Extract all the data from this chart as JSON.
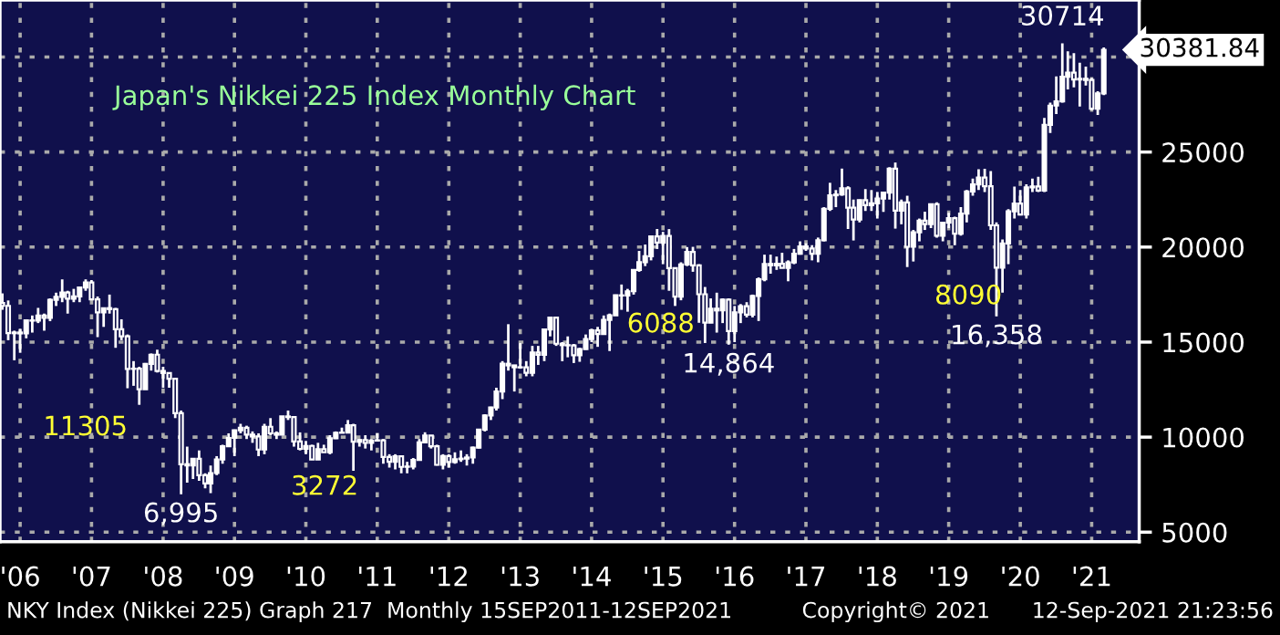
{
  "chart_data": {
    "type": "candlestick",
    "title": "Japan's Nikkei 225 Index Monthly Chart",
    "x": [
      "2006-04",
      "2006-05",
      "2006-06",
      "2006-07",
      "2006-08",
      "2006-09",
      "2006-10",
      "2006-11",
      "2006-12",
      "2007-01",
      "2007-02",
      "2007-03",
      "2007-04",
      "2007-05",
      "2007-06",
      "2007-07",
      "2007-08",
      "2007-09",
      "2007-10",
      "2007-11",
      "2007-12",
      "2008-01",
      "2008-02",
      "2008-03",
      "2008-04",
      "2008-05",
      "2008-06",
      "2008-07",
      "2008-08",
      "2008-09",
      "2008-10",
      "2008-11",
      "2008-12",
      "2009-01",
      "2009-02",
      "2009-03",
      "2009-04",
      "2009-05",
      "2009-06",
      "2009-07",
      "2009-08",
      "2009-09",
      "2009-10",
      "2009-11",
      "2009-12",
      "2010-01",
      "2010-02",
      "2010-03",
      "2010-04",
      "2010-05",
      "2010-06",
      "2010-07",
      "2010-08",
      "2010-09",
      "2010-10",
      "2010-11",
      "2010-12",
      "2011-01",
      "2011-02",
      "2011-03",
      "2011-04",
      "2011-05",
      "2011-06",
      "2011-07",
      "2011-08",
      "2011-09",
      "2011-10",
      "2011-11",
      "2011-12",
      "2012-01",
      "2012-02",
      "2012-03",
      "2012-04",
      "2012-05",
      "2012-06",
      "2012-07",
      "2012-08",
      "2012-09",
      "2012-10",
      "2012-11",
      "2012-12",
      "2013-01",
      "2013-02",
      "2013-03",
      "2013-04",
      "2013-05",
      "2013-06",
      "2013-07",
      "2013-08",
      "2013-09",
      "2013-10",
      "2013-11",
      "2013-12",
      "2014-01",
      "2014-02",
      "2014-03",
      "2014-04",
      "2014-05",
      "2014-06",
      "2014-07",
      "2014-08",
      "2014-09",
      "2014-10",
      "2014-11",
      "2014-12",
      "2015-01",
      "2015-02",
      "2015-03",
      "2015-04",
      "2015-05",
      "2015-06",
      "2015-07",
      "2015-08",
      "2015-09",
      "2015-10",
      "2015-11",
      "2015-12",
      "2016-01",
      "2016-02",
      "2016-03",
      "2016-04",
      "2016-05",
      "2016-06",
      "2016-07",
      "2016-08",
      "2016-09",
      "2016-10",
      "2016-11",
      "2016-12",
      "2017-01",
      "2017-02",
      "2017-03",
      "2017-04",
      "2017-05",
      "2017-06",
      "2017-07",
      "2017-08",
      "2017-09",
      "2017-10",
      "2017-11",
      "2017-12",
      "2018-01",
      "2018-02",
      "2018-03",
      "2018-04",
      "2018-05",
      "2018-06",
      "2018-07",
      "2018-08",
      "2018-09",
      "2018-10",
      "2018-11",
      "2018-12",
      "2019-01",
      "2019-02",
      "2019-03",
      "2019-04",
      "2019-05",
      "2019-06",
      "2019-07",
      "2019-08",
      "2019-09",
      "2019-10",
      "2019-11",
      "2019-12",
      "2020-01",
      "2020-02",
      "2020-03",
      "2020-04",
      "2020-05",
      "2020-06",
      "2020-07",
      "2020-08",
      "2020-09",
      "2020-10",
      "2020-11",
      "2020-12",
      "2021-01",
      "2021-02",
      "2021-03",
      "2021-04",
      "2021-05",
      "2021-06",
      "2021-07",
      "2021-08",
      "2021-09"
    ],
    "ohlc": [
      [
        17059,
        17563,
        16700,
        16906
      ],
      [
        16906,
        17190,
        15100,
        15467
      ],
      [
        15467,
        15600,
        14045,
        15505
      ],
      [
        15505,
        15700,
        14437,
        15457
      ],
      [
        15457,
        16200,
        15200,
        16140
      ],
      [
        16140,
        16400,
        15500,
        16128
      ],
      [
        16128,
        16800,
        16000,
        16399
      ],
      [
        16399,
        16500,
        15600,
        16274
      ],
      [
        16274,
        17300,
        16100,
        17226
      ],
      [
        17226,
        17600,
        16900,
        17383
      ],
      [
        17383,
        18300,
        17100,
        17604
      ],
      [
        17604,
        17700,
        16500,
        17288
      ],
      [
        17288,
        17800,
        17100,
        17400
      ],
      [
        17400,
        17900,
        17100,
        17875
      ],
      [
        17875,
        18300,
        17700,
        18138
      ],
      [
        18138,
        18262,
        17200,
        17248
      ],
      [
        17248,
        17400,
        15262,
        16569
      ],
      [
        16569,
        16800,
        15800,
        16786
      ],
      [
        16786,
        17500,
        16500,
        16737
      ],
      [
        16737,
        16800,
        14700,
        15680
      ],
      [
        15680,
        16200,
        15100,
        15308
      ],
      [
        15308,
        15400,
        12572,
        13592
      ],
      [
        13592,
        14000,
        12700,
        13603
      ],
      [
        13603,
        13700,
        11700,
        12525
      ],
      [
        12525,
        13900,
        12500,
        13849
      ],
      [
        13849,
        14400,
        13500,
        14338
      ],
      [
        14338,
        14600,
        13400,
        13481
      ],
      [
        13481,
        13700,
        12600,
        13376
      ],
      [
        13376,
        13400,
        12600,
        13072
      ],
      [
        13072,
        13100,
        11000,
        11259
      ],
      [
        11259,
        11400,
        6995,
        8576
      ],
      [
        8576,
        9500,
        7600,
        8512
      ],
      [
        8512,
        8900,
        7800,
        8859
      ],
      [
        8859,
        9300,
        7700,
        7994
      ],
      [
        7994,
        8100,
        7300,
        7568
      ],
      [
        7568,
        8500,
        7055,
        8109
      ],
      [
        8109,
        9000,
        8000,
        8828
      ],
      [
        8828,
        9600,
        8600,
        9522
      ],
      [
        9522,
        10200,
        9500,
        9958
      ],
      [
        9958,
        10400,
        9000,
        10356
      ],
      [
        10356,
        10700,
        10200,
        10492
      ],
      [
        10492,
        10600,
        9900,
        10133
      ],
      [
        10133,
        10300,
        9700,
        10034
      ],
      [
        10034,
        10200,
        9000,
        9345
      ],
      [
        9345,
        10700,
        9100,
        10546
      ],
      [
        10546,
        11000,
        10100,
        10198
      ],
      [
        10198,
        10300,
        9900,
        10126
      ],
      [
        10126,
        11100,
        10100,
        11089
      ],
      [
        11089,
        11400,
        10900,
        11057
      ],
      [
        11057,
        11100,
        9500,
        9768
      ],
      [
        9768,
        10250,
        9300,
        9382
      ],
      [
        9382,
        9800,
        9100,
        9537
      ],
      [
        9537,
        9600,
        8800,
        8824
      ],
      [
        8824,
        9700,
        8800,
        9369
      ],
      [
        9369,
        9600,
        9200,
        9202
      ],
      [
        9202,
        10100,
        9100,
        9937
      ],
      [
        9937,
        10300,
        9900,
        10228
      ],
      [
        10228,
        10500,
        10200,
        10237
      ],
      [
        10237,
        10900,
        10200,
        10624
      ],
      [
        10624,
        10700,
        8227,
        9755
      ],
      [
        9755,
        9900,
        9500,
        9849
      ],
      [
        9849,
        10100,
        9400,
        9693
      ],
      [
        9693,
        9900,
        9300,
        9816
      ],
      [
        9816,
        10200,
        9800,
        9833
      ],
      [
        9833,
        9900,
        8600,
        8955
      ],
      [
        8955,
        9100,
        8400,
        8700
      ],
      [
        8700,
        9100,
        8300,
        8988
      ],
      [
        8988,
        9000,
        8100,
        8434
      ],
      [
        8434,
        8700,
        8100,
        8455
      ],
      [
        8455,
        8900,
        8300,
        8802
      ],
      [
        8802,
        9900,
        8800,
        9723
      ],
      [
        9723,
        10255,
        9700,
        10083
      ],
      [
        10083,
        10100,
        9400,
        9520
      ],
      [
        9520,
        9600,
        8500,
        8542
      ],
      [
        8542,
        9100,
        8300,
        9006
      ],
      [
        9006,
        9100,
        8400,
        8695
      ],
      [
        8695,
        9200,
        8600,
        8839
      ],
      [
        8839,
        9300,
        8700,
        8870
      ],
      [
        8870,
        9100,
        8500,
        8928
      ],
      [
        8928,
        9500,
        8600,
        9446
      ],
      [
        9446,
        10400,
        9400,
        10395
      ],
      [
        10395,
        11200,
        10300,
        11138
      ],
      [
        11138,
        11600,
        10900,
        11559
      ],
      [
        11559,
        12600,
        11400,
        12397
      ],
      [
        12397,
        14000,
        12000,
        13860
      ],
      [
        13860,
        15942,
        13500,
        13774
      ],
      [
        13774,
        13800,
        12400,
        13677
      ],
      [
        13677,
        14950,
        13600,
        13668
      ],
      [
        13668,
        14000,
        13200,
        13388
      ],
      [
        13388,
        14800,
        13200,
        14455
      ],
      [
        14455,
        14800,
        13800,
        14327
      ],
      [
        14327,
        15700,
        14000,
        15661
      ],
      [
        15661,
        16320,
        15300,
        16291
      ],
      [
        16291,
        16300,
        14800,
        14914
      ],
      [
        14914,
        15000,
        13995,
        14841
      ],
      [
        14841,
        15300,
        14200,
        14828
      ],
      [
        14828,
        14900,
        13900,
        14304
      ],
      [
        14304,
        14700,
        13964,
        14632
      ],
      [
        14632,
        15400,
        14600,
        15162
      ],
      [
        15162,
        15700,
        15000,
        15620
      ],
      [
        15620,
        15800,
        14750,
        15425
      ],
      [
        15425,
        16400,
        15400,
        16173
      ],
      [
        16173,
        16500,
        14529,
        16413
      ],
      [
        16413,
        17500,
        16400,
        17460
      ],
      [
        17460,
        18030,
        16700,
        17450
      ],
      [
        17450,
        17800,
        16600,
        17674
      ],
      [
        17674,
        18800,
        17500,
        18798
      ],
      [
        18798,
        19800,
        18700,
        19206
      ],
      [
        19206,
        20133,
        19000,
        19520
      ],
      [
        19520,
        20600,
        19300,
        20563
      ],
      [
        20563,
        20952,
        19900,
        20235
      ],
      [
        20235,
        20800,
        19100,
        20585
      ],
      [
        20585,
        20946,
        17700,
        18890
      ],
      [
        18890,
        18900,
        16901,
        17388
      ],
      [
        17388,
        19200,
        17200,
        19083
      ],
      [
        19083,
        20000,
        19000,
        19747
      ],
      [
        19747,
        20012,
        18700,
        19033
      ],
      [
        19033,
        19100,
        16017,
        17518
      ],
      [
        17518,
        17900,
        14952,
        16026
      ],
      [
        16026,
        17300,
        16000,
        16758
      ],
      [
        16758,
        17600,
        15500,
        16666
      ],
      [
        16666,
        17300,
        16000,
        17235
      ],
      [
        17235,
        17300,
        14864,
        15575
      ],
      [
        15575,
        16900,
        15000,
        16569
      ],
      [
        16569,
        17000,
        16000,
        16887
      ],
      [
        16887,
        17100,
        16300,
        16449
      ],
      [
        16449,
        17500,
        16300,
        17425
      ],
      [
        17425,
        18400,
        16111,
        18308
      ],
      [
        18308,
        19600,
        18200,
        19114
      ],
      [
        19114,
        19600,
        18600,
        19041
      ],
      [
        19041,
        19500,
        18800,
        19119
      ],
      [
        19119,
        19700,
        18900,
        18909
      ],
      [
        18909,
        19300,
        18200,
        19197
      ],
      [
        19197,
        19900,
        19100,
        19650
      ],
      [
        19650,
        20300,
        19600,
        20033
      ],
      [
        20033,
        20200,
        19800,
        19925
      ],
      [
        19925,
        20100,
        19300,
        19646
      ],
      [
        19646,
        20500,
        19200,
        20356
      ],
      [
        20356,
        22100,
        20300,
        22011
      ],
      [
        22011,
        23382,
        21900,
        22724
      ],
      [
        22724,
        23000,
        22100,
        22764
      ],
      [
        22764,
        24129,
        22700,
        23098
      ],
      [
        23098,
        23200,
        20950,
        22068
      ],
      [
        22068,
        22500,
        20347,
        21454
      ],
      [
        21454,
        22500,
        21300,
        22467
      ],
      [
        22467,
        23050,
        21900,
        22202
      ],
      [
        22202,
        23000,
        21900,
        22304
      ],
      [
        22304,
        22900,
        21500,
        22553
      ],
      [
        22553,
        22900,
        21850,
        22865
      ],
      [
        22865,
        24200,
        22500,
        24120
      ],
      [
        24120,
        24448,
        20971,
        21920
      ],
      [
        21920,
        22500,
        21200,
        22351
      ],
      [
        22351,
        22700,
        18949,
        20015
      ],
      [
        20015,
        20900,
        19241,
        20773
      ],
      [
        20773,
        21500,
        20300,
        21385
      ],
      [
        21385,
        21860,
        20900,
        21206
      ],
      [
        21206,
        22300,
        21000,
        22258
      ],
      [
        22258,
        22350,
        20500,
        20601
      ],
      [
        20601,
        21300,
        20300,
        21276
      ],
      [
        21276,
        21800,
        21000,
        21521
      ],
      [
        21521,
        21600,
        20100,
        20704
      ],
      [
        20704,
        22100,
        20600,
        21756
      ],
      [
        21756,
        23000,
        21300,
        22927
      ],
      [
        22927,
        23600,
        22700,
        23294
      ],
      [
        23294,
        24091,
        23000,
        23657
      ],
      [
        23657,
        24116,
        22900,
        23205
      ],
      [
        23205,
        24000,
        20900,
        21143
      ],
      [
        21143,
        21300,
        16358,
        18917
      ],
      [
        18917,
        20400,
        17600,
        20193
      ],
      [
        20193,
        22000,
        19100,
        21878
      ],
      [
        21878,
        23178,
        21500,
        22288
      ],
      [
        22288,
        23000,
        21700,
        21710
      ],
      [
        21710,
        23300,
        21500,
        23140
      ],
      [
        23140,
        23600,
        22900,
        23185
      ],
      [
        23185,
        23700,
        22900,
        22977
      ],
      [
        22977,
        26800,
        22900,
        26434
      ],
      [
        26434,
        27600,
        26000,
        27444
      ],
      [
        27444,
        28979,
        27000,
        27663
      ],
      [
        27663,
        30714,
        27600,
        28966
      ],
      [
        28966,
        30300,
        28300,
        29179
      ],
      [
        29179,
        30200,
        28400,
        28813
      ],
      [
        28813,
        29700,
        27400,
        28860
      ],
      [
        28860,
        29500,
        28500,
        28792
      ],
      [
        28792,
        28900,
        27200,
        27284
      ],
      [
        27284,
        28200,
        26954,
        28090
      ],
      [
        28090,
        30500,
        28000,
        30381.84
      ]
    ],
    "color": "#ffffff",
    "xlim": [
      "2006-03-20",
      "2022-03-01"
    ],
    "xticks": [
      {
        "value": "2006-07",
        "label": "'06"
      },
      {
        "value": "2007-07",
        "label": "'07"
      },
      {
        "value": "2008-07",
        "label": "'08"
      },
      {
        "value": "2009-07",
        "label": "'09"
      },
      {
        "value": "2010-07",
        "label": "'10"
      },
      {
        "value": "2011-07",
        "label": "'11"
      },
      {
        "value": "2012-07",
        "label": "'12"
      },
      {
        "value": "2013-07",
        "label": "'13"
      },
      {
        "value": "2014-07",
        "label": "'14"
      },
      {
        "value": "2015-07",
        "label": "'15"
      },
      {
        "value": "2016-07",
        "label": "'16"
      },
      {
        "value": "2017-07",
        "label": "'17"
      },
      {
        "value": "2018-07",
        "label": "'18"
      },
      {
        "value": "2019-07",
        "label": "'19"
      },
      {
        "value": "2020-07",
        "label": "'20"
      },
      {
        "value": "2021-07",
        "label": "'21"
      }
    ],
    "ylim": [
      4500,
      33000
    ],
    "yticks": [
      5000,
      10000,
      15000,
      20000,
      25000,
      {
        "value": 30000,
        "label": null
      }
    ],
    "grid": true,
    "annotations": [
      "11305",
      {
        "text": "6,995",
        "x": "2008-10",
        "y": 6995
      },
      "3272",
      "6088",
      {
        "text": "14,864",
        "x": "2016-06",
        "y": 14864
      },
      "8090",
      {
        "text": "16,358",
        "x": "2020-03",
        "y": 16358
      },
      {
        "text": "30714",
        "x": "2021-02",
        "y": 30714
      },
      {
        "text": "30381.84",
        "x": "2021-09",
        "y": 30381.84
      },
      "NKY Index (Nikkei 225) Graph 217  Monthly 15SEP2011-12SEP2021",
      "Copyright© 2021",
      "12-Sep-2021 21:23:56"
    ]
  }
}
